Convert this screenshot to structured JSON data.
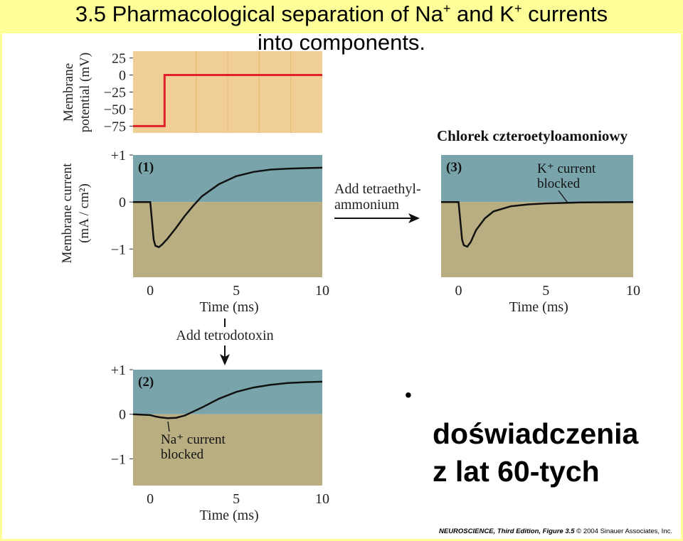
{
  "slide": {
    "title_line1_pre": "3.5  Pharmacological separation of Na",
    "title_line1_sup1": "+",
    "title_line1_mid": " and K",
    "title_line1_sup2": "+",
    "title_line1_post": " currents",
    "title_line2": "into components.",
    "translation_label": "Chlorek czteroetyloamoniowy",
    "bullet": "•",
    "body_line1": "doświadczenia",
    "body_line2": "z lat 60-tych",
    "credit_title": "NEUROSCIENCE, Third Edition, Figure 3.5",
    "credit_rest": "  © 2004 Sinauer Associates, Inc."
  },
  "colors": {
    "title_bar": "#ffff99",
    "voltage_panel": "#efcf96",
    "voltage_trace": "#e0202a",
    "current_upper": "#7aa4ac",
    "current_lower": "#b8ae82",
    "trace": "#111111",
    "arrow": "#111111"
  },
  "chart_data": [
    {
      "id": "voltage",
      "type": "line",
      "ylabel_line1": "Membrane",
      "ylabel_line2": "potential (mV)",
      "yticks": [
        "25",
        "0",
        "−25",
        "−50",
        "−75"
      ],
      "ytick_values": [
        25,
        0,
        -25,
        -50,
        -75
      ],
      "ylim": [
        -85,
        35
      ],
      "xlim": [
        -2,
        10
      ],
      "series": [
        {
          "x": [
            -2,
            0,
            0,
            10
          ],
          "y": [
            -75,
            -75,
            0,
            0
          ]
        }
      ]
    },
    {
      "id": "panel1",
      "type": "line",
      "panel_label": "(1)",
      "ylabel_line1": "Membrane current",
      "ylabel_line2": "(mA / cm²)",
      "yticks": [
        "+1",
        "0",
        "−1"
      ],
      "ytick_values": [
        1,
        0,
        -1
      ],
      "xticks": [
        "0",
        "5",
        "10"
      ],
      "xtick_values": [
        0,
        5,
        10
      ],
      "xlabel": "Time (ms)",
      "ylim": [
        -1.6,
        1.0
      ],
      "xlim": [
        -1,
        10
      ],
      "series": [
        {
          "x": [
            -1,
            0,
            0.1,
            0.2,
            0.3,
            0.5,
            0.7,
            1,
            1.5,
            2,
            2.5,
            3,
            4,
            5,
            6,
            7,
            8,
            9,
            10
          ],
          "y": [
            0,
            0,
            -0.4,
            -0.8,
            -0.93,
            -0.96,
            -0.9,
            -0.78,
            -0.55,
            -0.3,
            -0.08,
            0.12,
            0.38,
            0.55,
            0.64,
            0.69,
            0.71,
            0.72,
            0.73
          ]
        }
      ]
    },
    {
      "id": "panel3",
      "type": "line",
      "panel_label": "(3)",
      "annotation_line1": "K⁺ current",
      "annotation_line2": "blocked",
      "xticks": [
        "0",
        "5",
        "10"
      ],
      "xtick_values": [
        0,
        5,
        10
      ],
      "xlabel": "Time (ms)",
      "ylim": [
        -1.6,
        1.0
      ],
      "xlim": [
        -1,
        10
      ],
      "series": [
        {
          "x": [
            -1,
            0,
            0.1,
            0.2,
            0.3,
            0.5,
            0.7,
            1,
            1.5,
            2,
            3,
            4,
            5,
            7,
            10
          ],
          "y": [
            0,
            0,
            -0.4,
            -0.8,
            -0.92,
            -0.95,
            -0.85,
            -0.6,
            -0.35,
            -0.2,
            -0.09,
            -0.05,
            -0.03,
            -0.01,
            0
          ]
        }
      ]
    },
    {
      "id": "panel2",
      "type": "line",
      "panel_label": "(2)",
      "annotation_line1": "Na⁺ current",
      "annotation_line2": "blocked",
      "yticks": [
        "+1",
        "0",
        "−1"
      ],
      "ytick_values": [
        1,
        0,
        -1
      ],
      "xticks": [
        "0",
        "5",
        "10"
      ],
      "xtick_values": [
        0,
        5,
        10
      ],
      "xlabel": "Time (ms)",
      "ylim": [
        -1.6,
        1.0
      ],
      "xlim": [
        -1,
        10
      ],
      "series": [
        {
          "x": [
            -1,
            0,
            0.3,
            0.6,
            1,
            1.5,
            2,
            3,
            4,
            5,
            6,
            7,
            8,
            9,
            10
          ],
          "y": [
            0,
            -0.02,
            -0.05,
            -0.07,
            -0.09,
            -0.08,
            -0.03,
            0.15,
            0.35,
            0.5,
            0.6,
            0.66,
            0.7,
            0.72,
            0.73
          ]
        }
      ]
    }
  ],
  "arrows": {
    "right_label_line1": "Add tetraethyl-",
    "right_label_line2": "ammonium",
    "down_label": "Add tetrodotoxin"
  }
}
